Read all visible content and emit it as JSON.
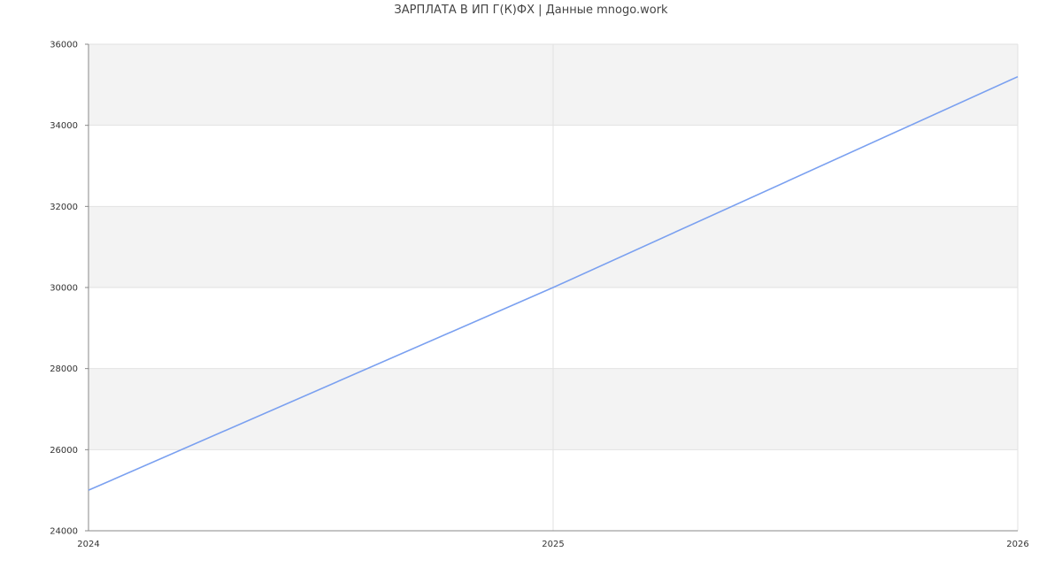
{
  "chart_data": {
    "type": "line",
    "title": "ЗАРПЛАТА В ИП Г(К)ФХ | Данные mnogo.work",
    "x": [
      "2024",
      "2025",
      "2026"
    ],
    "series": [
      {
        "values": [
          25000,
          30000,
          35200
        ],
        "color": "#7aa0f0"
      }
    ],
    "xlabel": "",
    "ylabel": "",
    "ylim": [
      24000,
      36000
    ],
    "yticks": [
      24000,
      26000,
      28000,
      30000,
      32000,
      34000,
      36000
    ],
    "grid": true,
    "band_color": "#f3f3f3",
    "legend": "none"
  }
}
